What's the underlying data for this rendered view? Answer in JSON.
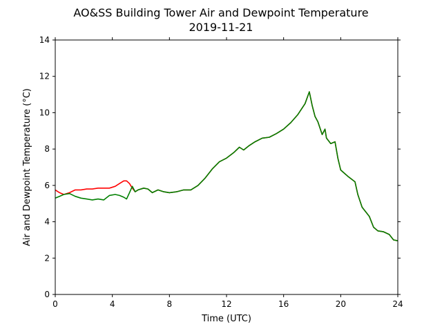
{
  "chart_data": {
    "type": "line",
    "title_lines": [
      "AO&SS Building Tower Air and Dewpoint Temperature",
      "2019-11-21"
    ],
    "xlabel": "Time (UTC)",
    "ylabel": "Air and Dewpoint Temperature (°C)",
    "xlim": [
      0,
      24
    ],
    "ylim": [
      0,
      14
    ],
    "xticks": [
      0,
      4,
      8,
      12,
      16,
      20,
      24
    ],
    "yticks": [
      0,
      2,
      4,
      6,
      8,
      10,
      12,
      14
    ],
    "grid": false,
    "series": [
      {
        "color": "#ff0000",
        "x": [
          0,
          0.3,
          0.6,
          1.0,
          1.4,
          1.8,
          2.2,
          2.6,
          3.0,
          3.4,
          3.8,
          4.2,
          4.5,
          4.8,
          5.0,
          5.2,
          5.4,
          5.6,
          5.8,
          6.2,
          6.5,
          6.8,
          7.2,
          7.6,
          8.0,
          8.5,
          9.0,
          9.5,
          10.0,
          10.5,
          11.0,
          11.5,
          12.0,
          12.5,
          12.9,
          13.2,
          13.6,
          14.0,
          14.5,
          15.0,
          15.5,
          16.0,
          16.5,
          17.0,
          17.5,
          17.8,
          18.0,
          18.2,
          18.4,
          18.7,
          18.9,
          19.0,
          19.3,
          19.6,
          19.8,
          20.0,
          20.5,
          21.0,
          21.2,
          21.5,
          21.8,
          22.0,
          22.3,
          22.6,
          23.0,
          23.4,
          23.7,
          24.0
        ],
        "y": [
          5.75,
          5.6,
          5.5,
          5.6,
          5.75,
          5.75,
          5.8,
          5.8,
          5.85,
          5.85,
          5.85,
          5.95,
          6.1,
          6.25,
          6.25,
          6.1,
          5.85,
          5.65,
          5.75,
          5.85,
          5.8,
          5.6,
          5.75,
          5.65,
          5.6,
          5.65,
          5.75,
          5.75,
          6.0,
          6.4,
          6.9,
          7.3,
          7.5,
          7.8,
          8.1,
          7.95,
          8.2,
          8.4,
          8.6,
          8.65,
          8.85,
          9.1,
          9.45,
          9.9,
          10.5,
          11.15,
          10.4,
          9.8,
          9.5,
          8.8,
          9.1,
          8.6,
          8.3,
          8.4,
          7.5,
          6.85,
          6.5,
          6.2,
          5.5,
          4.8,
          4.5,
          4.3,
          3.7,
          3.5,
          3.45,
          3.3,
          3.0,
          2.95
        ]
      },
      {
        "color": "#008000",
        "x": [
          0,
          0.3,
          0.6,
          1.0,
          1.4,
          1.8,
          2.2,
          2.6,
          3.0,
          3.4,
          3.8,
          4.2,
          4.5,
          4.8,
          5.0,
          5.2,
          5.4,
          5.6,
          5.8,
          6.2,
          6.5,
          6.8,
          7.2,
          7.6,
          8.0,
          8.5,
          9.0,
          9.5,
          10.0,
          10.5,
          11.0,
          11.5,
          12.0,
          12.5,
          12.9,
          13.2,
          13.6,
          14.0,
          14.5,
          15.0,
          15.5,
          16.0,
          16.5,
          17.0,
          17.5,
          17.8,
          18.0,
          18.2,
          18.4,
          18.7,
          18.9,
          19.0,
          19.3,
          19.6,
          19.8,
          20.0,
          20.5,
          21.0,
          21.2,
          21.5,
          21.8,
          22.0,
          22.3,
          22.6,
          23.0,
          23.4,
          23.7,
          24.0
        ],
        "y": [
          5.3,
          5.4,
          5.5,
          5.55,
          5.4,
          5.3,
          5.25,
          5.2,
          5.25,
          5.2,
          5.45,
          5.5,
          5.45,
          5.35,
          5.25,
          5.6,
          5.95,
          5.65,
          5.75,
          5.85,
          5.8,
          5.6,
          5.75,
          5.65,
          5.6,
          5.65,
          5.75,
          5.75,
          6.0,
          6.4,
          6.9,
          7.3,
          7.5,
          7.8,
          8.1,
          7.95,
          8.2,
          8.4,
          8.6,
          8.65,
          8.85,
          9.1,
          9.45,
          9.9,
          10.5,
          11.15,
          10.4,
          9.8,
          9.5,
          8.8,
          9.1,
          8.6,
          8.3,
          8.4,
          7.5,
          6.85,
          6.5,
          6.2,
          5.5,
          4.8,
          4.5,
          4.3,
          3.7,
          3.5,
          3.45,
          3.3,
          3.0,
          2.95
        ]
      }
    ]
  }
}
